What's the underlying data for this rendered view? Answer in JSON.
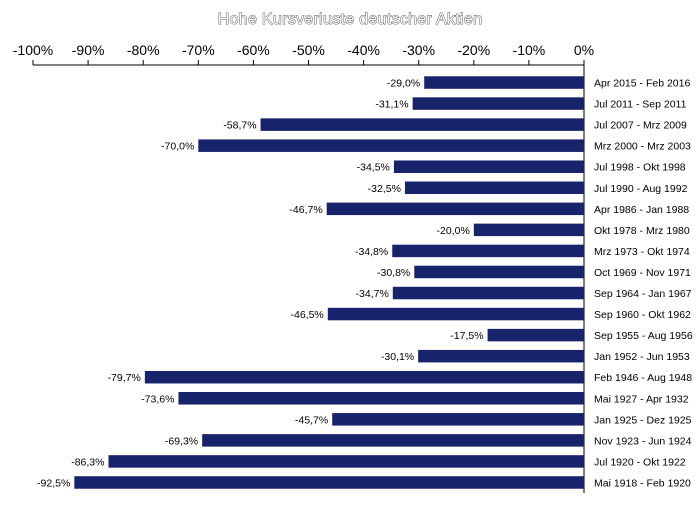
{
  "chart_data": {
    "type": "bar",
    "orientation": "horizontal",
    "title": "Hohe Kursverluste deutscher Aktien",
    "x_axis_position": "top",
    "xlim": [
      -100,
      0
    ],
    "x_ticks": [
      -100,
      -90,
      -80,
      -70,
      -60,
      -50,
      -40,
      -30,
      -20,
      -10,
      0
    ],
    "x_tick_labels": [
      "-100%",
      "-90%",
      "-80%",
      "-70%",
      "-60%",
      "-50%",
      "-40%",
      "-30%",
      "-20%",
      "-10%",
      "0%"
    ],
    "grid": false,
    "bar_color": "#17236b",
    "categories": [
      "Apr 2015 - Feb 2016",
      "Jul 2011 - Sep 2011",
      "Jul 2007 - Mrz 2009",
      "Mrz 2000 - Mrz 2003",
      "Jul 1998 - Okt 1998",
      "Jul 1990 - Aug 1992",
      "Apr 1986 - Jan 1988",
      "Okt 1978 - Mrz 1980",
      "Mrz 1973 - Okt 1974",
      "Oct 1969 - Nov 1971",
      "Sep 1964 - Jan 1967",
      "Sep 1960 - Okt 1962",
      "Sep 1955 - Aug 1956",
      "Jan 1952 - Jun 1953",
      "Feb 1946 - Aug 1948",
      "Mai 1927 - Apr 1932",
      "Jan 1925 - Dez 1925",
      "Nov 1923 - Jun 1924",
      "Jul 1920 - Okt 1922",
      "Mai 1918 - Feb 1920"
    ],
    "values": [
      -29.0,
      -31.1,
      -58.7,
      -70.0,
      -34.5,
      -32.5,
      -46.7,
      -20.0,
      -34.8,
      -30.8,
      -34.7,
      -46.5,
      -17.5,
      -30.1,
      -79.7,
      -73.6,
      -45.7,
      -69.3,
      -86.3,
      -92.5
    ],
    "value_labels": [
      "-29,0%",
      "-31,1%",
      "-58,7%",
      "-70,0%",
      "-34,5%",
      "-32,5%",
      "-46,7%",
      "-20,0%",
      "-34,8%",
      "-30,8%",
      "-34,7%",
      "-46,5%",
      "-17,5%",
      "-30,1%",
      "-79,7%",
      "-73,6%",
      "-45,7%",
      "-69,3%",
      "-86,3%",
      "-92,5%"
    ]
  }
}
